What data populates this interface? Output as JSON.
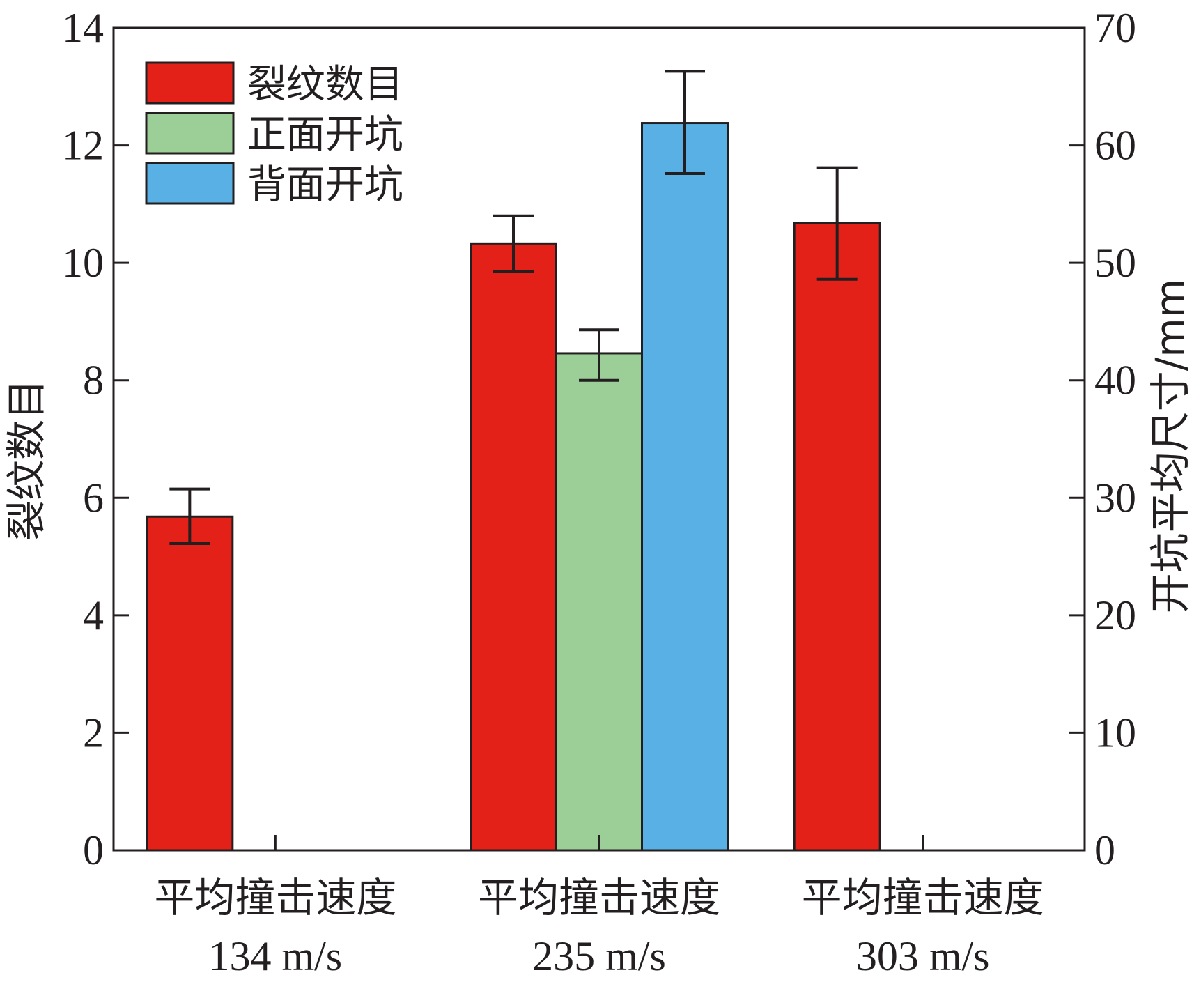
{
  "chart_data": {
    "type": "bar",
    "categories": [
      {
        "line1": "平均撞击速度",
        "line2": "134 m/s"
      },
      {
        "line1": "平均撞击速度",
        "line2": "235 m/s"
      },
      {
        "line1": "平均撞击速度",
        "line2": "303 m/s"
      }
    ],
    "y_left": {
      "label": "裂纹数目",
      "lim": [
        0,
        14
      ],
      "ticks": [
        0,
        2,
        4,
        6,
        8,
        10,
        12,
        14
      ]
    },
    "y_right": {
      "label": "开坑平均尺寸/mm",
      "lim": [
        0,
        70
      ],
      "ticks": [
        0,
        10,
        20,
        30,
        40,
        50,
        60,
        70
      ]
    },
    "series": [
      {
        "name": "裂纹数目",
        "axis": "left",
        "color": "#e42119",
        "values": [
          5.68,
          10.33,
          10.68
        ],
        "errors": [
          [
            5.22,
            6.15
          ],
          [
            9.85,
            10.8
          ],
          [
            9.72,
            11.62
          ]
        ]
      },
      {
        "name": "正面开坑",
        "axis": "right",
        "color": "#9ccf98",
        "values": [
          null,
          42.3,
          null
        ],
        "errors": [
          null,
          [
            40.0,
            44.3
          ],
          null
        ]
      },
      {
        "name": "背面开坑",
        "axis": "right",
        "color": "#59b0e4",
        "values": [
          null,
          61.9,
          null
        ],
        "errors": [
          null,
          [
            57.6,
            66.3
          ],
          null
        ]
      }
    ],
    "legend_position": "top-left",
    "grid": false
  }
}
